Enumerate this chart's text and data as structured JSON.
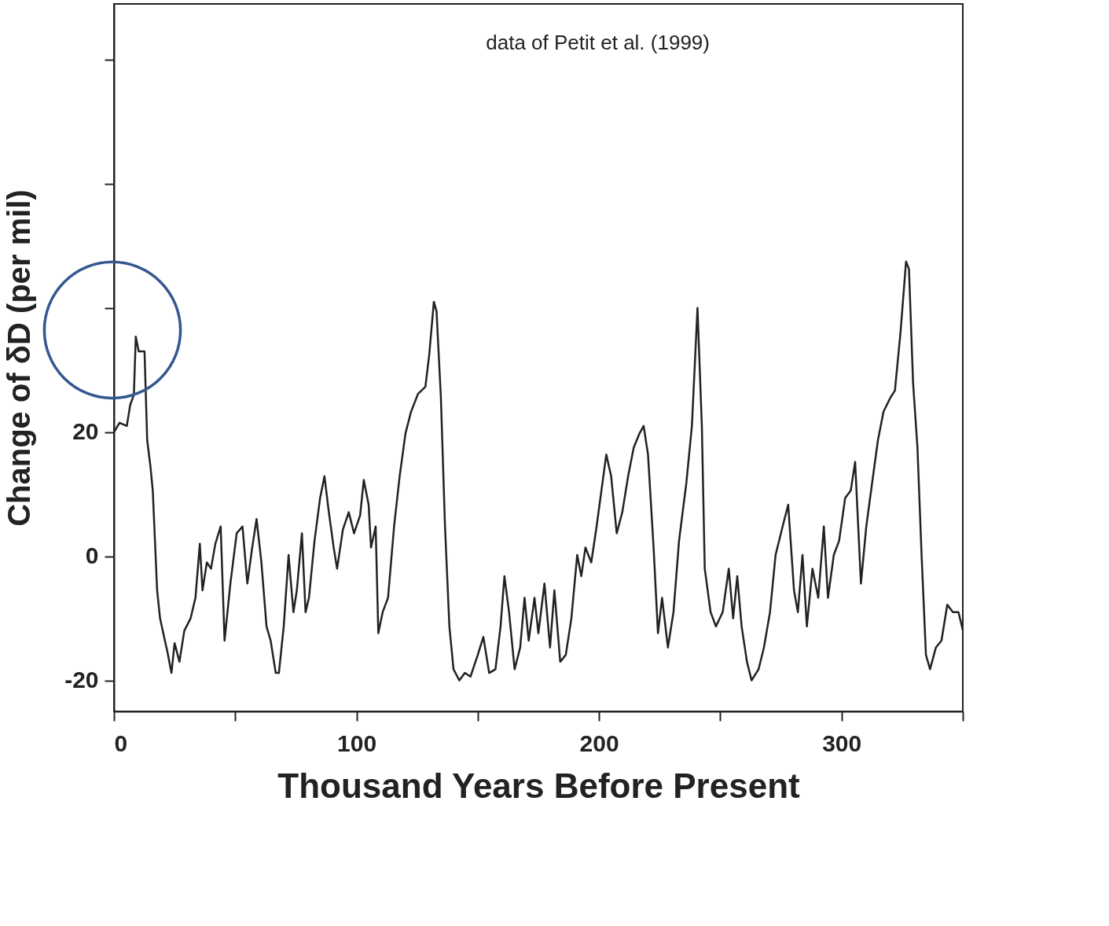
{
  "chart_data": {
    "type": "line",
    "xlabel": "Thousand Years Before Present",
    "ylabel": "Change of δD (per mil)",
    "annotations": [
      "data of Petit et al. (1999)"
    ],
    "x": [
      0,
      2.3,
      5.3,
      6.7,
      8.2,
      9,
      10.2,
      12.6,
      13.7,
      15,
      16,
      17.8,
      19,
      21,
      22,
      23.7,
      25,
      27,
      29,
      31.6,
      33.6,
      35.4,
      36.5,
      38.3,
      40,
      41.8,
      44,
      45.6,
      48,
      50.6,
      53,
      55,
      57,
      58.8,
      60.8,
      62.9,
      64.6,
      66.7,
      68,
      70,
      72,
      74,
      75.4,
      77.5,
      79,
      80.4,
      82.7,
      85,
      86.8,
      88.6,
      90.6,
      92,
      94.4,
      96.8,
      99,
      101.5,
      103,
      105,
      106,
      107.9,
      109,
      110.8,
      113,
      115.5,
      117.8,
      120.2,
      122.5,
      125.4,
      128.4,
      130,
      131.9,
      133,
      134.8,
      136.5,
      138.3,
      140,
      142.4,
      144.7,
      147,
      150,
      152.3,
      154.7,
      157.3,
      159.4,
      161,
      162.9,
      165.2,
      167.5,
      169.3,
      171,
      173.4,
      175,
      177.5,
      179.8,
      181.6,
      184,
      186.3,
      188.6,
      191,
      192.7,
      194.4,
      196.8,
      199,
      201,
      203,
      205,
      207.3,
      209.6,
      212,
      214.3,
      216.7,
      218.4,
      220.2,
      222.5,
      224.3,
      226,
      228.4,
      230.7,
      233,
      236,
      238.3,
      240.6,
      242.4,
      243.6,
      246,
      248.2,
      251,
      253.5,
      255.3,
      257,
      258.8,
      261,
      262.9,
      265.8,
      268,
      270.5,
      272.8,
      275.7,
      278,
      280.4,
      282,
      283.9,
      285.7,
      288,
      290.4,
      292.7,
      294.4,
      296.8,
      299,
      301.5,
      303.8,
      305.6,
      308,
      310.2,
      312.6,
      315,
      317.3,
      320.2,
      322,
      324.3,
      326.6,
      327.8,
      329.5,
      331.3,
      333,
      334.8,
      336.5,
      338.9,
      341.2,
      343.6,
      345.9,
      348.2,
      350
    ],
    "series": [
      {
        "color": "#222222",
        "values": [
          20,
          21.5,
          21,
          24.4,
          26,
          35.4,
          33,
          33,
          18.7,
          14.6,
          10.6,
          -5.5,
          -10,
          -13.6,
          -15.3,
          -18.8,
          -14,
          -17,
          -12,
          -10,
          -6.7,
          2,
          -5.5,
          -1,
          -2,
          2,
          4.8,
          -13.6,
          -4.4,
          3.7,
          4.8,
          -4.4,
          1.4,
          6,
          -1,
          -11.3,
          -13.6,
          -18.8,
          -18.8,
          -11.3,
          0.2,
          -9,
          -5.5,
          3.7,
          -9,
          -6.7,
          2.5,
          9.4,
          12.9,
          7.1,
          1.4,
          -2,
          4.3,
          7.1,
          3.7,
          6.6,
          12.3,
          8.3,
          1.4,
          4.8,
          -12.4,
          -9,
          -6.7,
          4.8,
          12.9,
          19.8,
          23.3,
          26.2,
          27.3,
          32.5,
          41,
          39.5,
          25.6,
          4.8,
          -11.3,
          -18.2,
          -20,
          -18.8,
          -19.4,
          -15.9,
          -13,
          -18.8,
          -18.2,
          -11.3,
          -3.2,
          -9,
          -18.2,
          -14.7,
          -6.7,
          -13.6,
          -6.7,
          -12.4,
          -4.4,
          -14.7,
          -5.5,
          -17,
          -15.9,
          -10,
          0.2,
          -3.2,
          1.4,
          -1,
          4.8,
          10.6,
          16.4,
          12.9,
          3.7,
          7.1,
          12.9,
          17.5,
          19.8,
          21,
          16.4,
          1.4,
          -12.4,
          -6.7,
          -14.7,
          -9,
          2.5,
          11.8,
          21,
          40,
          21,
          -2,
          -9,
          -11.3,
          -9,
          -2,
          -10,
          -3.2,
          -11.3,
          -17,
          -20,
          -18.2,
          -14.7,
          -9,
          0.2,
          4.8,
          8.3,
          -5.5,
          -9,
          0.2,
          -11.3,
          -2,
          -6.7,
          4.8,
          -6.7,
          0.2,
          2.5,
          9.4,
          10.6,
          15.2,
          -4.4,
          4.8,
          11.8,
          18.7,
          23.3,
          25.6,
          26.7,
          36,
          47.5,
          46.3,
          27.9,
          17.5,
          0.2,
          -15.9,
          -18.2,
          -14.7,
          -13.6,
          -7.8,
          -9,
          -9,
          -11.9
        ]
      }
    ],
    "xlim": [
      0,
      350
    ],
    "xticks": [
      0,
      {
        "value": 50,
        "label": null
      },
      100,
      {
        "value": 150,
        "label": null
      },
      200,
      {
        "value": 250,
        "label": null
      },
      300,
      {
        "value": 350,
        "label": null
      }
    ],
    "ylim": [
      -25,
      89
    ],
    "yticks": [
      -20,
      0,
      20,
      {
        "value": 40,
        "label": null
      },
      {
        "value": 60,
        "label": null
      },
      {
        "value": 80,
        "label": null
      }
    ],
    "grid": false,
    "line_style": "solid",
    "marker": "none"
  }
}
